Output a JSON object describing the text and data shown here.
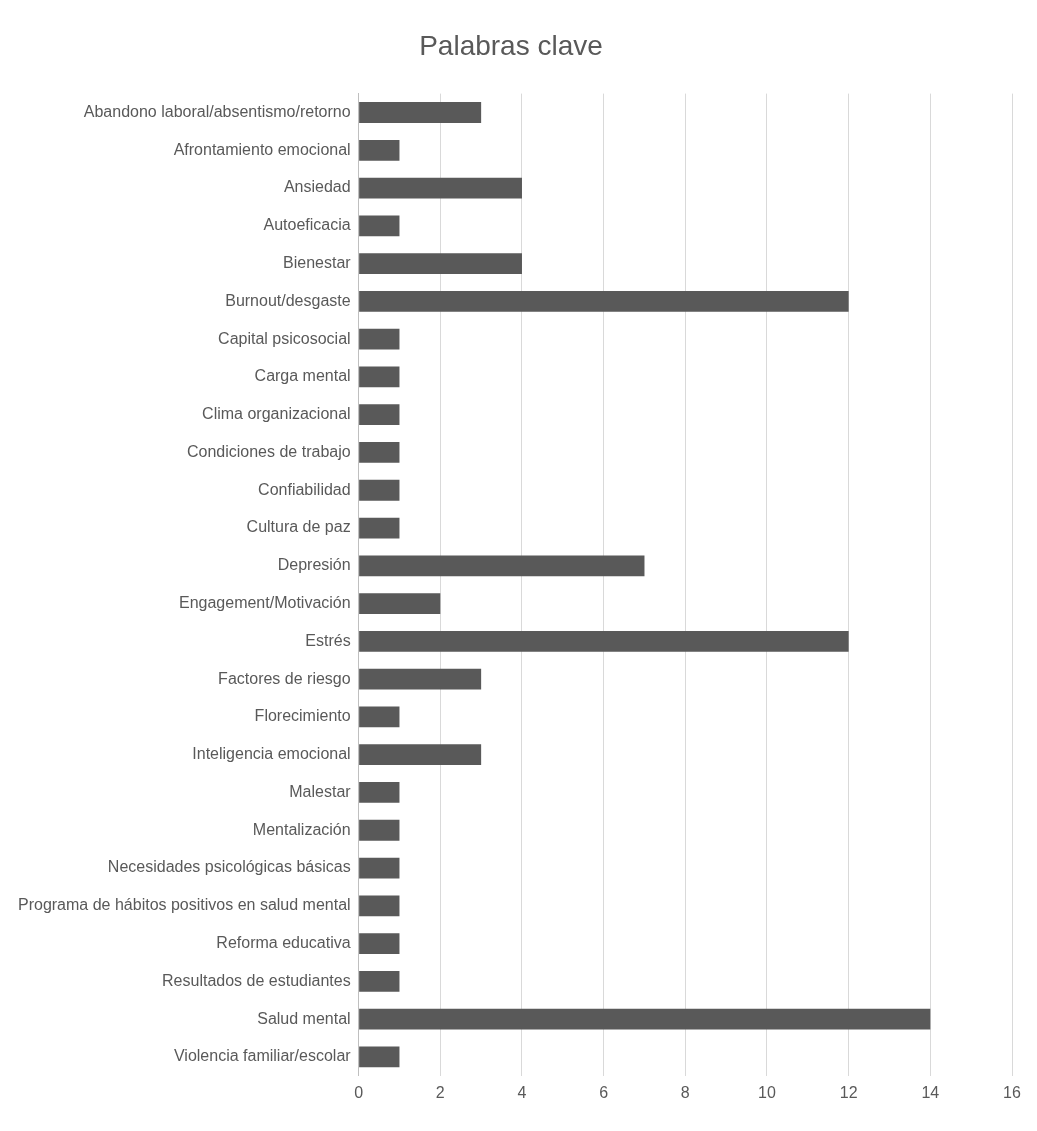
{
  "chart_data": {
    "type": "bar",
    "orientation": "horizontal",
    "title": "Palabras clave",
    "categories": [
      "Abandono laboral/absentismo/retorno",
      "Afrontamiento emocional",
      "Ansiedad",
      "Autoeficacia",
      "Bienestar",
      "Burnout/desgaste",
      "Capital psicosocial",
      "Carga mental",
      "Clima organizacional",
      "Condiciones de trabajo",
      "Confiabilidad",
      "Cultura de paz",
      "Depresión",
      "Engagement/Motivación",
      "Estrés",
      "Factores de riesgo",
      "Florecimiento",
      "Inteligencia emocional",
      "Malestar",
      "Mentalización",
      "Necesidades psicológicas básicas",
      "Programa de hábitos positivos en salud mental",
      "Reforma educativa",
      "Resultados de estudiantes",
      "Salud mental",
      "Violencia familiar/escolar"
    ],
    "values": [
      3,
      1,
      4,
      1,
      4,
      12,
      1,
      1,
      1,
      1,
      1,
      1,
      7,
      2,
      12,
      3,
      1,
      3,
      1,
      1,
      1,
      1,
      1,
      1,
      14,
      1
    ],
    "color": "#595959",
    "xlim": [
      0,
      16
    ],
    "xticks": [
      0,
      2,
      4,
      6,
      8,
      10,
      12,
      14,
      16
    ],
    "grid": "x",
    "legend": false
  }
}
